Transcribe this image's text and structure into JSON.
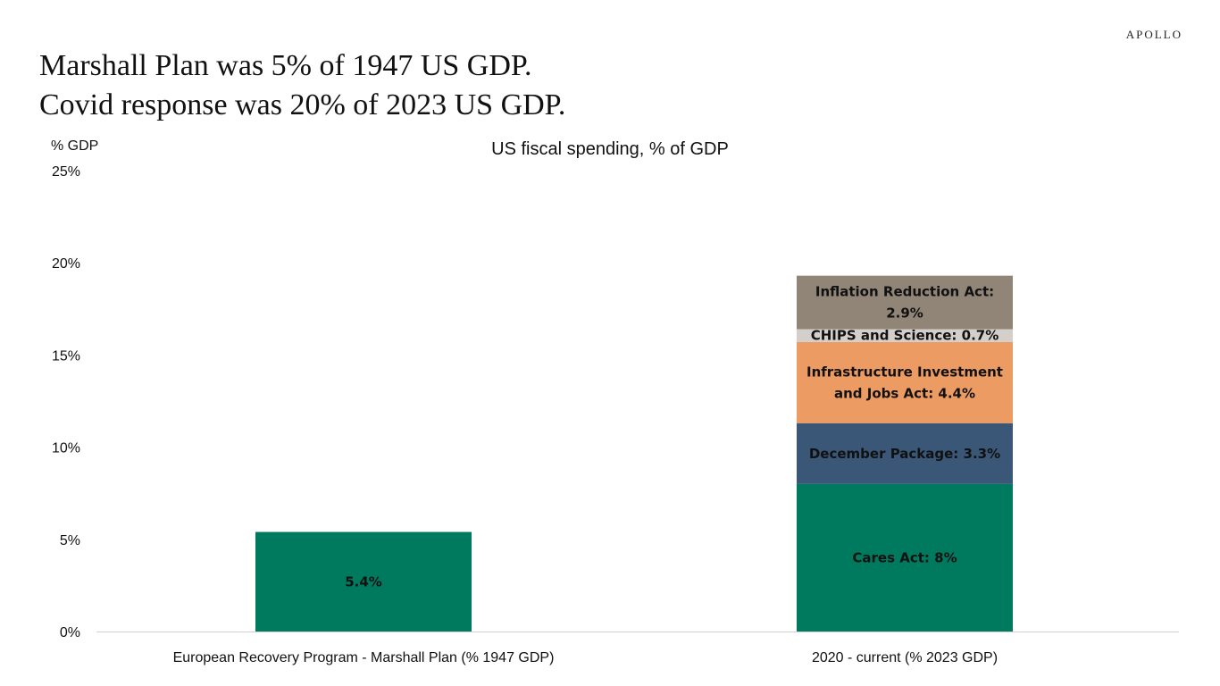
{
  "brand": "APOLLO",
  "headline": {
    "line1": "Marshall Plan was 5% of 1947 US GDP.",
    "line2": "Covid response was 20% of 2023 US GDP."
  },
  "chart_data": {
    "type": "bar",
    "stacked": true,
    "title": "US fiscal spending, % of GDP",
    "ylabel": "% GDP",
    "xlabel": "",
    "ylim": [
      0,
      25
    ],
    "yticks": [
      0,
      5,
      10,
      15,
      20,
      25
    ],
    "ytick_labels": [
      "0%",
      "5%",
      "10%",
      "15%",
      "20%",
      "25%"
    ],
    "grid": false,
    "categories": [
      "European Recovery Program - Marshall Plan (% 1947 GDP)",
      "2020 - current (% 2023 GDP)"
    ],
    "series": [
      {
        "name": "Marshall Plan",
        "color": "#007A5E",
        "values": [
          5.4,
          0
        ],
        "labels": [
          "5.4%",
          ""
        ]
      },
      {
        "name": "Cares Act",
        "color": "#007A5E",
        "values": [
          0,
          8.0
        ],
        "labels": [
          "",
          "Cares Act: 8%"
        ]
      },
      {
        "name": "December Package",
        "color": "#3A5778",
        "values": [
          0,
          3.3
        ],
        "labels": [
          "",
          "December Package: 3.3%"
        ]
      },
      {
        "name": "Infrastructure Investment and Jobs Act",
        "color": "#EC9B62",
        "values": [
          0,
          4.4
        ],
        "labels": [
          "",
          "Infrastructure Investment|and Jobs Act: 4.4%"
        ]
      },
      {
        "name": "CHIPS and Science",
        "color": "#D5CFCB",
        "values": [
          0,
          0.7
        ],
        "labels": [
          "",
          "CHIPS and Science: 0.7%"
        ]
      },
      {
        "name": "Inflation Reduction Act",
        "color": "#918578",
        "values": [
          0,
          2.9
        ],
        "labels": [
          "",
          "Inflation Reduction Act:|2.9%"
        ]
      }
    ]
  }
}
